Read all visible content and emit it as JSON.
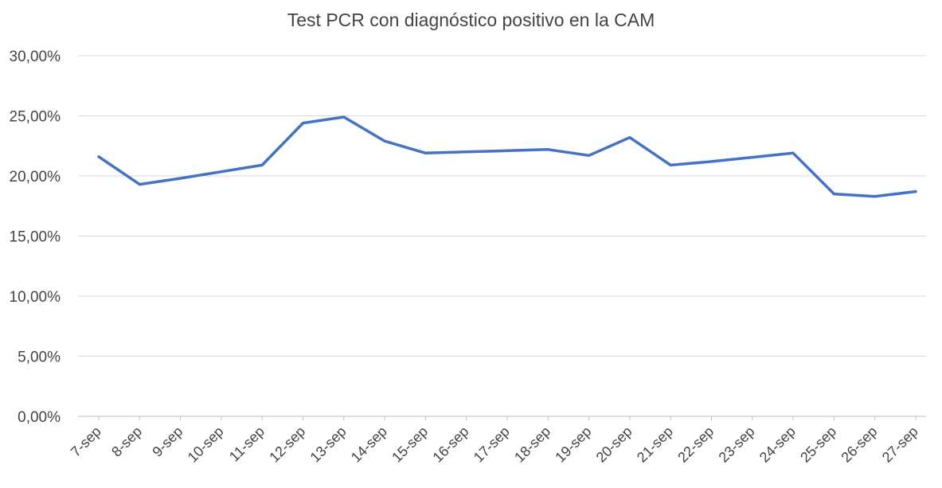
{
  "chart_data": {
    "type": "line",
    "title": "Test PCR con diagnóstico positivo en la CAM",
    "xlabel": "",
    "ylabel": "",
    "categories": [
      "7-sep",
      "8-sep",
      "9-sep",
      "10-sep",
      "11-sep",
      "12-sep",
      "13-sep",
      "14-sep",
      "15-sep",
      "16-sep",
      "17-sep",
      "18-sep",
      "19-sep",
      "20-sep",
      "21-sep",
      "22-sep",
      "23-sep",
      "24-sep",
      "25-sep",
      "26-sep",
      "27-sep"
    ],
    "series": [
      {
        "values": [
          21.6,
          19.3,
          19.8,
          20.35,
          20.9,
          24.4,
          24.9,
          22.9,
          21.9,
          22.0,
          22.1,
          22.2,
          21.7,
          23.2,
          20.9,
          21.2,
          21.55,
          21.9,
          18.5,
          18.3,
          18.7
        ],
        "color": "#4472C4"
      }
    ],
    "ylim": [
      0,
      30
    ],
    "yticks": [
      0,
      5,
      10,
      15,
      20,
      25,
      30
    ],
    "ytick_labels": [
      "0,00%",
      "5,00%",
      "10,00%",
      "15,00%",
      "20,00%",
      "25,00%",
      "30,00%"
    ],
    "grid": true,
    "legend": "none"
  }
}
